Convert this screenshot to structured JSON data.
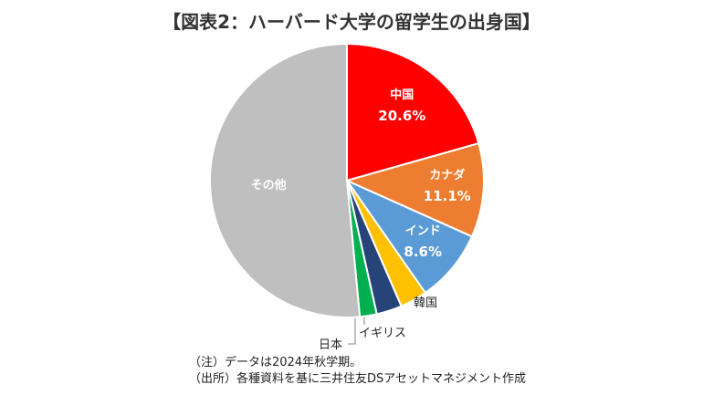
{
  "title": "【図表2：ハーバード大学の留学生の出身国】",
  "chart_data": {
    "type": "pie",
    "start_angle_deg": 0,
    "direction": "clockwise",
    "slices": [
      {
        "label": "中国",
        "value": 20.6,
        "value_label": "20.6%",
        "color": "#FF0000",
        "label_placement": "inside",
        "text_color": "#ffffff"
      },
      {
        "label": "カナダ",
        "value": 11.1,
        "value_label": "11.1%",
        "color": "#ED7D31",
        "label_placement": "inside",
        "text_color": "#ffffff"
      },
      {
        "label": "インド",
        "value": 8.6,
        "value_label": "8.6%",
        "color": "#5B9BD5",
        "label_placement": "inside",
        "text_color": "#ffffff"
      },
      {
        "label": "韓国",
        "value": 3.2,
        "value_label": "",
        "color": "#FFC000",
        "label_placement": "outside",
        "text_color": "#222222"
      },
      {
        "label": "イギリス",
        "value": 3.0,
        "value_label": "",
        "color": "#264478",
        "label_placement": "outside",
        "text_color": "#222222"
      },
      {
        "label": "日本",
        "value": 2.0,
        "value_label": "",
        "color": "#00B050",
        "label_placement": "outside",
        "text_color": "#222222"
      },
      {
        "label": "その他",
        "value": 51.5,
        "value_label": "",
        "color": "#BFBFBF",
        "label_placement": "inside",
        "text_color": "#ffffff"
      }
    ]
  },
  "notes": {
    "note1": "（注）データは2024年秋学期。",
    "note2": "（出所）各種資料を基に三井住友DSアセットマネジメント作成"
  }
}
